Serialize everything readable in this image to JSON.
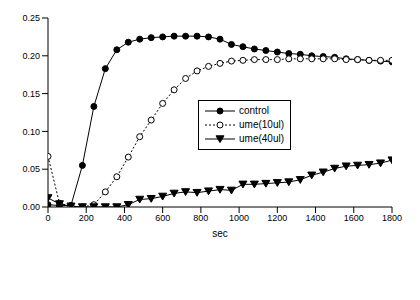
{
  "chart_data": {
    "type": "line",
    "x_label": "sec",
    "x": [
      0,
      60,
      120,
      180,
      240,
      300,
      360,
      420,
      480,
      540,
      600,
      660,
      720,
      780,
      840,
      900,
      960,
      1020,
      1080,
      1140,
      1200,
      1260,
      1320,
      1380,
      1440,
      1500,
      1560,
      1620,
      1680,
      1740,
      1800
    ],
    "series": [
      {
        "name": "control",
        "color": "#000000",
        "marker": "circle",
        "line_style": "solid",
        "values": [
          0.003,
          0.002,
          0.002,
          0.055,
          0.133,
          0.183,
          0.208,
          0.218,
          0.222,
          0.224,
          0.225,
          0.226,
          0.226,
          0.226,
          0.225,
          0.222,
          0.215,
          0.212,
          0.209,
          0.207,
          0.205,
          0.203,
          0.202,
          0.2,
          0.199,
          0.198,
          0.196,
          0.195,
          0.194,
          0.193,
          0.192
        ]
      },
      {
        "name": "ume(10ul)",
        "color": "#000000",
        "marker": "circle_open",
        "line_style": "dotted",
        "values": [
          0.067,
          0.005,
          0.001,
          0.0,
          0.003,
          0.02,
          0.04,
          0.066,
          0.093,
          0.115,
          0.137,
          0.155,
          0.17,
          0.18,
          0.186,
          0.19,
          0.193,
          0.194,
          0.195,
          0.195,
          0.195,
          0.196,
          0.196,
          0.196,
          0.196,
          0.196,
          0.195,
          0.195,
          0.194,
          0.194,
          0.194
        ]
      },
      {
        "name": "ume(40ul)",
        "color": "#000000",
        "marker": "triangle_down",
        "line_style": "solid",
        "values": [
          0.012,
          0.004,
          0.001,
          0.0,
          0.0,
          0.0,
          0.0,
          0.003,
          0.01,
          0.011,
          0.014,
          0.018,
          0.02,
          0.019,
          0.021,
          0.023,
          0.022,
          0.03,
          0.03,
          0.031,
          0.032,
          0.033,
          0.036,
          0.042,
          0.046,
          0.051,
          0.054,
          0.055,
          0.056,
          0.058,
          0.062
        ]
      }
    ],
    "xlim": [
      0,
      1800
    ],
    "xticks": [
      0,
      200,
      400,
      600,
      800,
      1000,
      1200,
      1400,
      1600,
      1800
    ],
    "ylim": [
      0,
      0.25
    ],
    "yticks": [
      {
        "value": 0,
        "label": "0.00"
      },
      0.05,
      {
        "value": 0.1,
        "label": "0.10"
      },
      0.15,
      {
        "value": 0.2,
        "label": "0.20"
      },
      0.25
    ],
    "legend": "center",
    "grid": false
  }
}
